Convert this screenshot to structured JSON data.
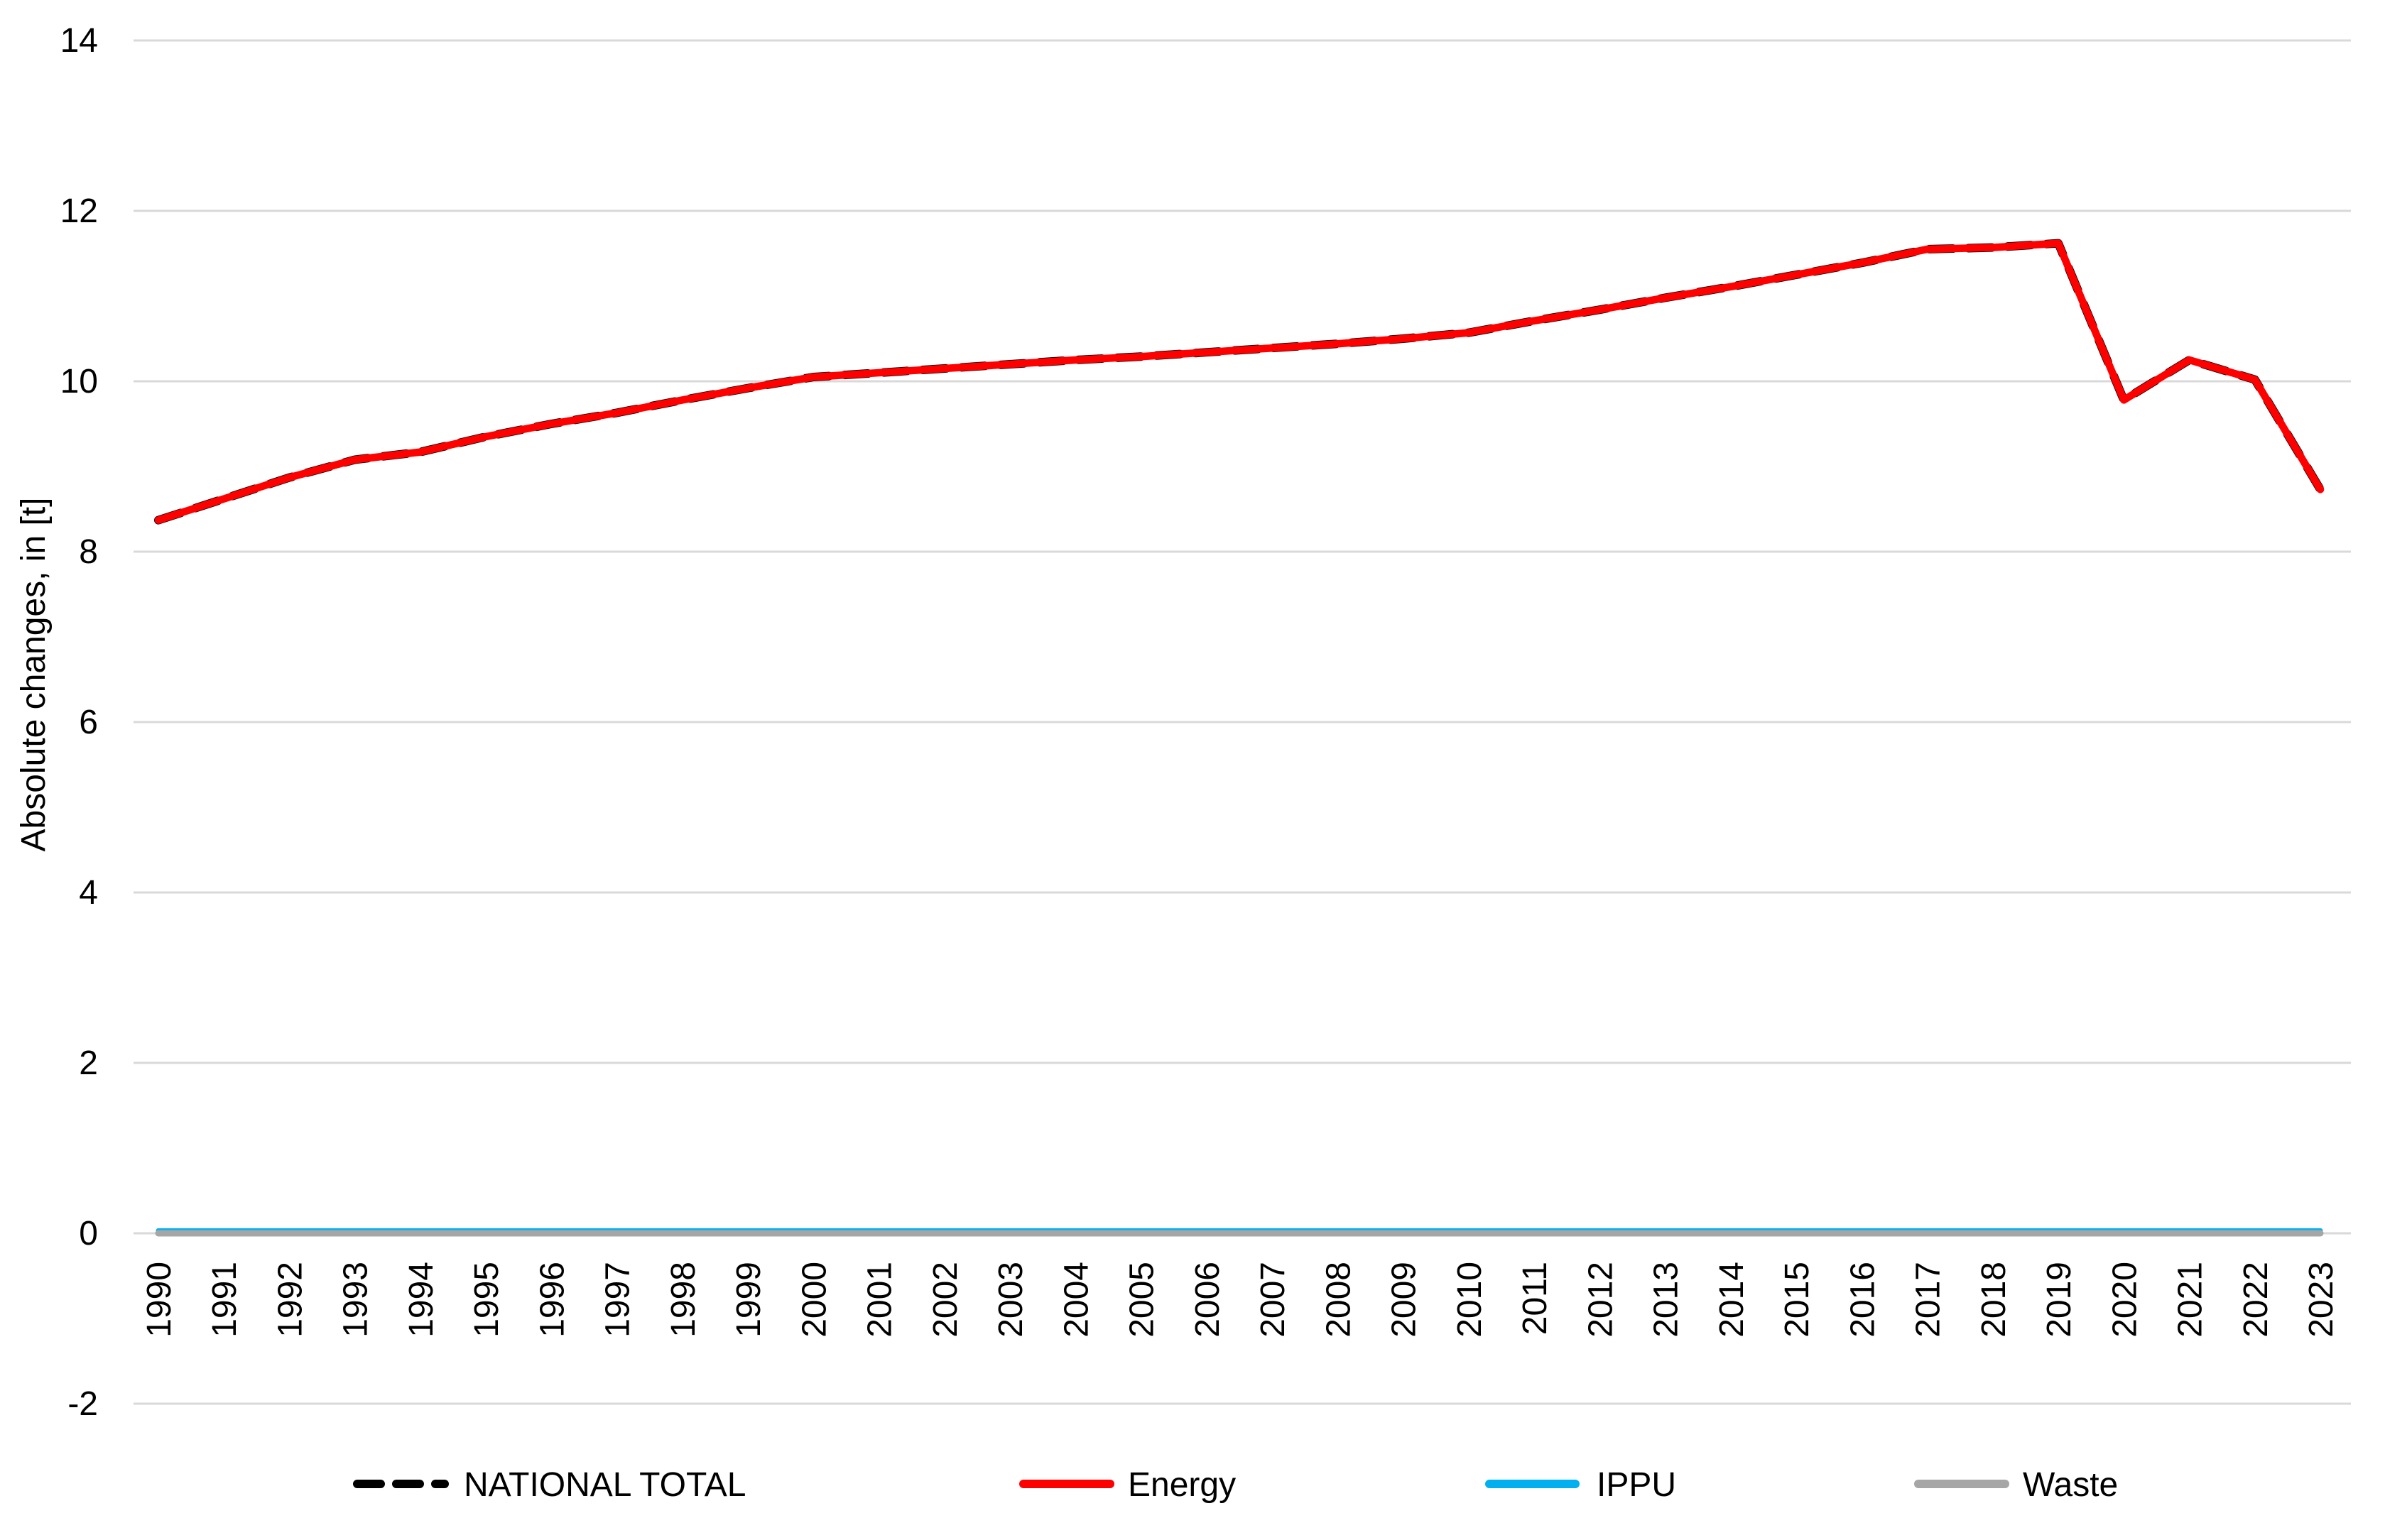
{
  "chart_data": {
    "type": "line",
    "title": "",
    "xlabel": "",
    "ylabel": "Absolute changes, in [t]",
    "ylim": [
      -2,
      14
    ],
    "yticks": [
      -2,
      0,
      2,
      4,
      6,
      8,
      10,
      12,
      14
    ],
    "grid": "horizontal",
    "grid_color": "#D9D9D9",
    "legend_position": "bottom",
    "x": [
      1990,
      1991,
      1992,
      1993,
      1994,
      1995,
      1996,
      1997,
      1998,
      1999,
      2000,
      2001,
      2002,
      2003,
      2004,
      2005,
      2006,
      2007,
      2008,
      2009,
      2010,
      2011,
      2012,
      2013,
      2014,
      2015,
      2016,
      2017,
      2018,
      2019,
      2020,
      2021,
      2022,
      2023
    ],
    "series": [
      {
        "name": "NATIONAL TOTAL",
        "color": "#000000",
        "style": "dashed",
        "values": [
          8.37,
          8.62,
          8.87,
          9.08,
          9.17,
          9.35,
          9.5,
          9.63,
          9.78,
          9.92,
          10.05,
          10.1,
          10.15,
          10.2,
          10.25,
          10.29,
          10.34,
          10.39,
          10.44,
          10.5,
          10.57,
          10.71,
          10.84,
          10.98,
          11.11,
          11.25,
          11.39,
          11.55,
          11.57,
          11.62,
          9.78,
          10.25,
          10.02,
          8.73
        ]
      },
      {
        "name": "Energy",
        "color": "#FF0000",
        "style": "solid",
        "values": [
          8.37,
          8.62,
          8.87,
          9.08,
          9.17,
          9.35,
          9.5,
          9.63,
          9.78,
          9.92,
          10.05,
          10.1,
          10.15,
          10.2,
          10.25,
          10.29,
          10.34,
          10.39,
          10.44,
          10.5,
          10.57,
          10.71,
          10.84,
          10.98,
          11.11,
          11.25,
          11.39,
          11.55,
          11.57,
          11.62,
          9.78,
          10.25,
          10.02,
          8.73
        ]
      },
      {
        "name": "IPPU",
        "color": "#00B0F0",
        "style": "solid",
        "values": [
          0.03,
          0.03,
          0.03,
          0.03,
          0.03,
          0.03,
          0.03,
          0.03,
          0.03,
          0.03,
          0.03,
          0.03,
          0.03,
          0.03,
          0.03,
          0.03,
          0.03,
          0.03,
          0.03,
          0.03,
          0.03,
          0.03,
          0.03,
          0.03,
          0.03,
          0.03,
          0.03,
          0.03,
          0.03,
          0.03,
          0.03,
          0.03,
          0.03,
          0.03
        ]
      },
      {
        "name": "Waste",
        "color": "#A6A6A6",
        "style": "solid",
        "values": [
          0,
          0,
          0,
          0,
          0,
          0,
          0,
          0,
          0,
          0,
          0,
          0,
          0,
          0,
          0,
          0,
          0,
          0,
          0,
          0,
          0,
          0,
          0,
          0,
          0,
          0,
          0,
          0,
          0,
          0,
          0,
          0,
          0,
          0
        ]
      }
    ]
  }
}
